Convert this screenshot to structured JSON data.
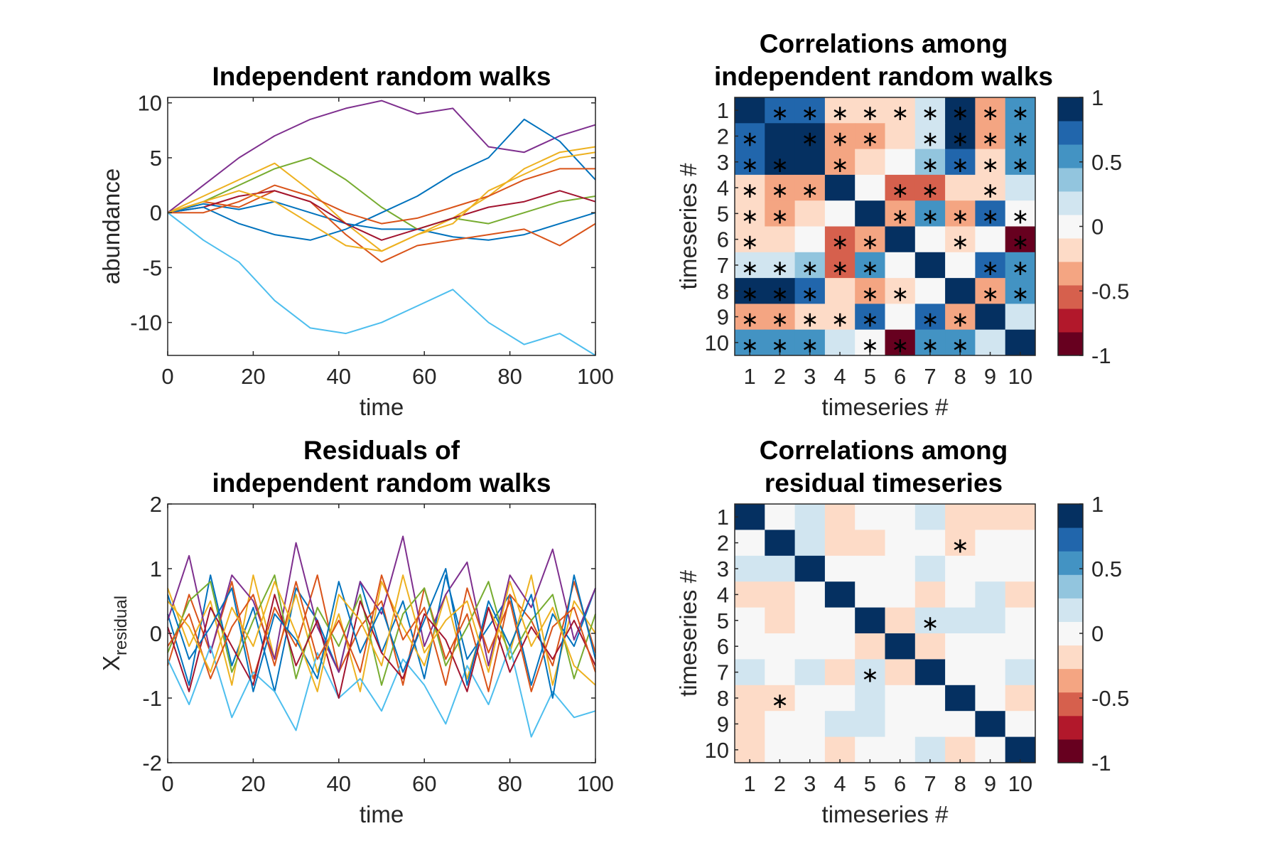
{
  "chart_data": [
    {
      "type": "line",
      "title": [
        "Independent random walks"
      ],
      "xlabel": "time",
      "ylabel": "abundance",
      "xlim": [
        0,
        100
      ],
      "ylim": [
        -13,
        10.5
      ],
      "xticks": [
        0,
        20,
        40,
        60,
        80,
        100
      ],
      "xtick_labels": [
        "0",
        "20",
        "40",
        "60",
        "80",
        "100"
      ],
      "yticks": [
        10,
        5,
        0,
        -5,
        -10
      ],
      "ytick_labels": [
        "10",
        "5",
        "0",
        "-5",
        "-10"
      ],
      "grid": false,
      "series": [
        {
          "color": "#0072BD",
          "values": [
            0.0,
            0.8,
            0.3,
            1.0,
            0.0,
            -1.0,
            -1.5,
            -1.5,
            -2.2,
            -2.5,
            -2.0,
            -1.0,
            0.0
          ]
        },
        {
          "color": "#D95319",
          "values": [
            0.0,
            1.0,
            0.5,
            2.0,
            1.0,
            -2.0,
            -4.5,
            -3.0,
            -2.5,
            -2.0,
            -1.5,
            -3.0,
            -1.0
          ]
        },
        {
          "color": "#EDB120",
          "values": [
            0.0,
            1.5,
            3.0,
            4.5,
            2.0,
            -1.0,
            -3.5,
            -2.0,
            -0.5,
            1.5,
            4.0,
            5.5,
            6.0
          ]
        },
        {
          "color": "#7E2F8E",
          "values": [
            0.0,
            2.5,
            5.0,
            7.0,
            8.5,
            9.5,
            10.2,
            9.0,
            9.5,
            6.0,
            5.5,
            7.0,
            8.0
          ]
        },
        {
          "color": "#77AC30",
          "values": [
            0.0,
            1.0,
            2.5,
            4.0,
            5.0,
            3.0,
            0.5,
            -1.5,
            -0.5,
            -1.0,
            0.0,
            1.0,
            1.5
          ]
        },
        {
          "color": "#4DBEEE",
          "values": [
            0.0,
            -2.5,
            -4.5,
            -8.0,
            -10.5,
            -11.0,
            -10.0,
            -8.5,
            -7.0,
            -10.0,
            -12.0,
            -11.0,
            -13.0
          ]
        },
        {
          "color": "#A2142F",
          "values": [
            0.0,
            0.5,
            1.5,
            2.0,
            1.0,
            -1.0,
            -2.5,
            -1.5,
            -0.5,
            0.5,
            1.0,
            2.0,
            1.0
          ]
        },
        {
          "color": "#0072BD",
          "values": [
            0.0,
            0.5,
            -1.0,
            -2.0,
            -2.5,
            -1.5,
            0.0,
            1.5,
            3.5,
            5.0,
            8.5,
            6.5,
            3.0
          ]
        },
        {
          "color": "#D95319",
          "values": [
            0.0,
            0.0,
            1.0,
            2.5,
            1.5,
            0.0,
            -1.0,
            -0.5,
            0.5,
            1.5,
            3.0,
            4.0,
            4.0
          ]
        },
        {
          "color": "#EDB120",
          "values": [
            0.0,
            1.0,
            2.0,
            1.0,
            -1.0,
            -3.0,
            -3.5,
            -2.0,
            -1.0,
            2.0,
            3.5,
            5.0,
            5.5
          ]
        }
      ]
    },
    {
      "type": "heatmap",
      "title": [
        "Correlations among",
        "independent random walks"
      ],
      "xlabel": "timeseries #",
      "ylabel": "timeseries #",
      "xtick_labels": [
        "1",
        "2",
        "3",
        "4",
        "5",
        "6",
        "7",
        "8",
        "9",
        "10"
      ],
      "ytick_labels": [
        "1",
        "2",
        "3",
        "4",
        "5",
        "6",
        "7",
        "8",
        "9",
        "10"
      ],
      "matrix": [
        [
          1.0,
          0.75,
          0.7,
          -0.1,
          -0.1,
          -0.1,
          0.1,
          0.85,
          -0.3,
          0.5
        ],
        [
          0.75,
          1.0,
          0.9,
          -0.35,
          -0.35,
          -0.1,
          0.1,
          0.95,
          -0.3,
          0.5
        ],
        [
          0.7,
          0.9,
          1.0,
          -0.3,
          -0.1,
          0.05,
          0.4,
          0.7,
          -0.1,
          0.55
        ],
        [
          -0.1,
          -0.35,
          -0.3,
          1.0,
          0.05,
          -0.6,
          -0.55,
          -0.1,
          -0.1,
          0.15
        ],
        [
          -0.1,
          -0.35,
          -0.1,
          0.05,
          1.0,
          -0.3,
          0.55,
          -0.3,
          0.7,
          0.05
        ],
        [
          -0.1,
          -0.1,
          0.05,
          -0.6,
          -0.3,
          1.0,
          0.0,
          -0.1,
          0.0,
          -0.9
        ],
        [
          0.1,
          0.1,
          0.4,
          -0.55,
          0.55,
          0.0,
          1.0,
          0.0,
          0.7,
          0.55
        ],
        [
          0.85,
          0.95,
          0.7,
          -0.1,
          -0.3,
          -0.1,
          0.0,
          1.0,
          -0.4,
          0.55
        ],
        [
          -0.3,
          -0.3,
          -0.1,
          -0.1,
          0.7,
          0.0,
          0.7,
          -0.4,
          1.0,
          0.15
        ],
        [
          0.5,
          0.5,
          0.55,
          0.15,
          0.05,
          -0.9,
          0.55,
          0.55,
          0.15,
          1.0
        ]
      ],
      "significant": [
        [
          0,
          1,
          1,
          1,
          1,
          1,
          1,
          1,
          1,
          1
        ],
        [
          1,
          0,
          1,
          1,
          1,
          0,
          1,
          1,
          1,
          1
        ],
        [
          1,
          1,
          0,
          1,
          0,
          0,
          1,
          1,
          1,
          1
        ],
        [
          1,
          1,
          1,
          0,
          0,
          1,
          1,
          0,
          1,
          0
        ],
        [
          1,
          1,
          0,
          0,
          0,
          1,
          1,
          1,
          1,
          1
        ],
        [
          1,
          0,
          0,
          1,
          1,
          0,
          0,
          1,
          0,
          1
        ],
        [
          1,
          1,
          1,
          1,
          1,
          0,
          0,
          0,
          1,
          1
        ],
        [
          1,
          1,
          1,
          0,
          1,
          1,
          0,
          0,
          1,
          1
        ],
        [
          1,
          1,
          1,
          1,
          1,
          0,
          1,
          1,
          0,
          0
        ],
        [
          1,
          1,
          1,
          0,
          1,
          1,
          1,
          1,
          0,
          0
        ]
      ],
      "significance_marker": "∗",
      "clim": [
        -1,
        1
      ],
      "colorbar": {
        "ticks": [
          1,
          0.5,
          0,
          -0.5,
          -1
        ],
        "tick_labels": [
          "1",
          "0.5",
          "0",
          "-0.5",
          "-1"
        ]
      }
    },
    {
      "type": "line",
      "title": [
        "Residuals of",
        "independent random walks"
      ],
      "xlabel": "time",
      "ylabel": "X",
      "ylabel_subscript": "residual",
      "xlim": [
        0,
        100
      ],
      "ylim": [
        -2,
        2
      ],
      "xticks": [
        0,
        20,
        40,
        60,
        80,
        100
      ],
      "xtick_labels": [
        "0",
        "20",
        "40",
        "60",
        "80",
        "100"
      ],
      "yticks": [
        2,
        1,
        0,
        -1,
        -2
      ],
      "ytick_labels": [
        "2",
        "1",
        "0",
        "-1",
        "-2"
      ],
      "grid": false,
      "series": [
        {
          "color": "#0072BD",
          "values": [
            0.3,
            -0.8,
            0.9,
            -0.5,
            0.4,
            -0.9,
            0.7,
            0.2,
            -0.6,
            0.8,
            -0.3,
            0.5,
            -0.7,
            0.9,
            -0.4,
            0.1,
            0.6,
            -0.8,
            0.3,
            -0.2,
            0.7
          ]
        },
        {
          "color": "#D95319",
          "values": [
            -0.5,
            0.6,
            -0.3,
            0.8,
            -0.7,
            0.4,
            -0.2,
            0.9,
            -0.6,
            0.1,
            0.5,
            -0.8,
            0.7,
            -0.4,
            0.3,
            -0.9,
            0.6,
            0.2,
            -0.5,
            0.8,
            -0.3
          ]
        },
        {
          "color": "#EDB120",
          "values": [
            0.7,
            -0.2,
            0.5,
            -0.8,
            0.9,
            -0.4,
            0.6,
            -0.6,
            0.3,
            -0.9,
            0.8,
            0.1,
            -0.5,
            0.6,
            -0.7,
            0.4,
            -0.3,
            0.9,
            -0.8,
            0.5,
            0.0
          ]
        },
        {
          "color": "#7E2F8E",
          "values": [
            0.2,
            1.2,
            -0.3,
            0.9,
            0.5,
            -0.4,
            1.4,
            0.1,
            -0.6,
            0.8,
            0.3,
            1.5,
            -0.2,
            0.6,
            1.1,
            -0.5,
            0.9,
            0.4,
            1.3,
            -0.1,
            0.7
          ]
        },
        {
          "color": "#77AC30",
          "values": [
            -0.3,
            0.5,
            0.8,
            -0.6,
            0.2,
            0.9,
            -0.7,
            0.4,
            -0.2,
            0.6,
            -0.8,
            0.3,
            0.7,
            -0.5,
            0.1,
            0.8,
            -0.4,
            0.2,
            0.6,
            -0.7,
            0.3
          ]
        },
        {
          "color": "#4DBEEE",
          "values": [
            -0.4,
            -1.1,
            -0.2,
            -1.3,
            -0.6,
            -0.9,
            -1.5,
            -0.3,
            -1.0,
            -0.7,
            -1.2,
            -0.4,
            -0.8,
            -1.4,
            -0.5,
            -1.1,
            -0.2,
            -1.6,
            -0.9,
            -1.3,
            -1.2
          ]
        },
        {
          "color": "#A2142F",
          "values": [
            0.1,
            -0.9,
            0.4,
            -0.2,
            -0.8,
            0.6,
            -0.5,
            0.2,
            -1.0,
            0.5,
            -0.3,
            -0.7,
            0.3,
            -0.1,
            -0.9,
            0.4,
            -0.6,
            0.1,
            -0.4,
            0.2,
            -0.5
          ]
        },
        {
          "color": "#0072BD",
          "values": [
            0.6,
            -0.4,
            0.1,
            0.7,
            -0.9,
            0.3,
            -0.1,
            -0.7,
            0.8,
            -0.3,
            0.4,
            -0.6,
            0.2,
            1.0,
            -0.8,
            0.5,
            -0.2,
            0.6,
            -1.0,
            0.9,
            -0.4
          ]
        },
        {
          "color": "#D95319",
          "values": [
            -0.2,
            0.3,
            -0.7,
            0.1,
            0.6,
            -0.5,
            0.8,
            -0.4,
            0.2,
            -0.6,
            0.9,
            -0.1,
            0.4,
            -0.8,
            0.7,
            -0.3,
            0.5,
            -0.9,
            0.1,
            0.4,
            -0.6
          ]
        },
        {
          "color": "#EDB120",
          "values": [
            0.5,
            0.1,
            -0.6,
            0.4,
            -0.2,
            0.8,
            0.0,
            -0.9,
            0.6,
            0.2,
            -0.5,
            0.9,
            -0.3,
            0.2,
            0.5,
            -0.6,
            0.8,
            -0.2,
            0.4,
            -0.5,
            -0.8
          ]
        }
      ]
    },
    {
      "type": "heatmap",
      "title": [
        "Correlations among",
        "residual timeseries"
      ],
      "xlabel": "timeseries #",
      "ylabel": "timeseries #",
      "xtick_labels": [
        "1",
        "2",
        "3",
        "4",
        "5",
        "6",
        "7",
        "8",
        "9",
        "10"
      ],
      "ytick_labels": [
        "1",
        "2",
        "3",
        "4",
        "5",
        "6",
        "7",
        "8",
        "9",
        "10"
      ],
      "matrix": [
        [
          1.0,
          0.0,
          0.15,
          -0.1,
          0.0,
          0.0,
          0.15,
          -0.1,
          -0.1,
          -0.1
        ],
        [
          0.0,
          1.0,
          0.15,
          -0.1,
          -0.1,
          0.0,
          0.0,
          -0.15,
          0.0,
          0.0
        ],
        [
          0.15,
          0.15,
          1.0,
          0.0,
          0.0,
          0.0,
          0.15,
          0.0,
          0.0,
          0.0
        ],
        [
          -0.1,
          -0.1,
          0.0,
          1.0,
          0.0,
          0.0,
          -0.1,
          0.0,
          0.15,
          -0.1
        ],
        [
          0.0,
          -0.1,
          0.0,
          0.0,
          1.0,
          -0.1,
          0.15,
          0.15,
          0.15,
          0.0
        ],
        [
          0.0,
          0.0,
          0.0,
          0.0,
          -0.1,
          1.0,
          -0.1,
          0.0,
          0.0,
          0.0
        ],
        [
          0.15,
          0.0,
          0.15,
          -0.1,
          0.15,
          -0.1,
          1.0,
          0.0,
          0.0,
          0.15
        ],
        [
          -0.1,
          -0.15,
          0.0,
          0.0,
          0.15,
          0.0,
          0.0,
          1.0,
          0.0,
          -0.1
        ],
        [
          -0.1,
          0.0,
          0.0,
          0.15,
          0.15,
          0.0,
          0.0,
          0.0,
          1.0,
          0.0
        ],
        [
          -0.1,
          0.0,
          0.0,
          -0.1,
          0.0,
          0.0,
          0.15,
          -0.1,
          0.0,
          1.0
        ]
      ],
      "significant": [
        [
          0,
          0,
          0,
          0,
          0,
          0,
          0,
          0,
          0,
          0
        ],
        [
          0,
          0,
          0,
          0,
          0,
          0,
          0,
          1,
          0,
          0
        ],
        [
          0,
          0,
          0,
          0,
          0,
          0,
          0,
          0,
          0,
          0
        ],
        [
          0,
          0,
          0,
          0,
          0,
          0,
          0,
          0,
          0,
          0
        ],
        [
          0,
          0,
          0,
          0,
          0,
          0,
          1,
          0,
          0,
          0
        ],
        [
          0,
          0,
          0,
          0,
          0,
          0,
          0,
          0,
          0,
          0
        ],
        [
          0,
          0,
          0,
          0,
          1,
          0,
          0,
          0,
          0,
          0
        ],
        [
          0,
          1,
          0,
          0,
          0,
          0,
          0,
          0,
          0,
          0
        ],
        [
          0,
          0,
          0,
          0,
          0,
          0,
          0,
          0,
          0,
          0
        ],
        [
          0,
          0,
          0,
          0,
          0,
          0,
          0,
          0,
          0,
          0
        ]
      ],
      "significance_marker": "∗",
      "clim": [
        -1,
        1
      ],
      "colorbar": {
        "ticks": [
          1,
          0.5,
          0,
          -0.5,
          -1
        ],
        "tick_labels": [
          "1",
          "0.5",
          "0",
          "-0.5",
          "-1"
        ]
      }
    }
  ],
  "colormap": [
    "#67001f",
    "#b2182b",
    "#d6604d",
    "#f4a582",
    "#fddbc7",
    "#f7f7f7",
    "#d1e5f0",
    "#92c5de",
    "#4393c3",
    "#2166ac",
    "#053061"
  ]
}
